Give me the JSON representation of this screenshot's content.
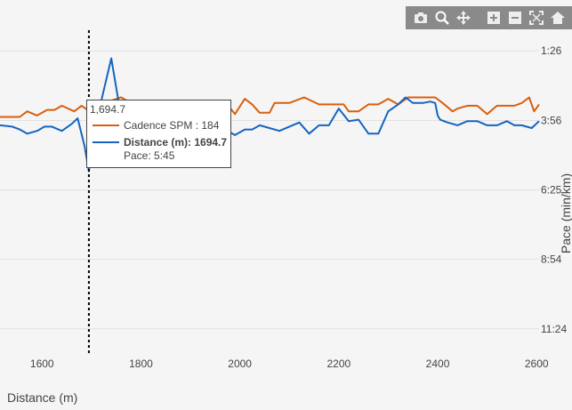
{
  "chart_data": {
    "type": "line",
    "xlabel": "Distance (m)",
    "ylabel": "Pace (min/km)",
    "xlim": [
      1515,
      2605
    ],
    "x_ticks": [
      1600,
      1800,
      2000,
      2200,
      2400,
      2600
    ],
    "x_tick_labels": [
      "1600",
      "1800",
      "2000",
      "2200",
      "2400",
      "2600"
    ],
    "y_ticks": [
      "1:26",
      "3:56",
      "6:25",
      "8:54",
      "11:24"
    ],
    "y_tick_values": [
      1.43,
      3.93,
      6.42,
      8.9,
      11.4
    ],
    "ylim": [
      0.5,
      12.3
    ],
    "y_axis_side": "right",
    "grid": true,
    "hover_x": 1694.7,
    "series": [
      {
        "name": "Cadence SPM",
        "color": "#d95f0e",
        "x": [
          1515,
          1537,
          1545,
          1555,
          1570,
          1590,
          1610,
          1625,
          1640,
          1665,
          1680,
          1692,
          1705,
          1720,
          1742,
          1760,
          1780,
          1800,
          1830,
          1860,
          1880,
          1900,
          1920,
          1945,
          1970,
          1990,
          2010,
          2025,
          2040,
          2060,
          2070,
          2085,
          2100,
          2130,
          2160,
          2190,
          2210,
          2220,
          2240,
          2260,
          2280,
          2300,
          2320,
          2340,
          2360,
          2380,
          2395,
          2410,
          2430,
          2440,
          2460,
          2480,
          2500,
          2520,
          2540,
          2555,
          2570,
          2585,
          2595,
          2605
        ],
        "values": [
          3.8,
          3.8,
          3.8,
          3.8,
          3.6,
          3.75,
          3.55,
          3.55,
          3.4,
          3.6,
          3.4,
          3.55,
          3.5,
          3.35,
          3.2,
          3.1,
          3.3,
          3.35,
          3.4,
          3.35,
          3.35,
          3.3,
          3.3,
          3.25,
          3.25,
          3.7,
          3.15,
          3.35,
          3.65,
          3.65,
          3.3,
          3.3,
          3.3,
          3.1,
          3.35,
          3.35,
          3.35,
          3.6,
          3.6,
          3.35,
          3.35,
          3.15,
          3.35,
          3.1,
          3.1,
          3.1,
          3.1,
          3.3,
          3.6,
          3.5,
          3.4,
          3.4,
          3.7,
          3.4,
          3.4,
          3.4,
          3.3,
          3.1,
          3.6,
          3.35
        ]
      },
      {
        "name": "Distance (m)",
        "color": "#1565c0",
        "x": [
          1515,
          1540,
          1555,
          1570,
          1590,
          1605,
          1620,
          1640,
          1660,
          1672,
          1686,
          1694.7,
          1705,
          1720,
          1740,
          1760,
          1780,
          1800,
          1830,
          1860,
          1880,
          1900,
          1920,
          1945,
          1970,
          1990,
          2010,
          2025,
          2040,
          2060,
          2080,
          2100,
          2120,
          2140,
          2160,
          2180,
          2200,
          2220,
          2240,
          2260,
          2280,
          2300,
          2320,
          2335,
          2350,
          2370,
          2385,
          2395,
          2400,
          2405,
          2420,
          2440,
          2460,
          2480,
          2500,
          2520,
          2540,
          2555,
          2570,
          2590,
          2605
        ],
        "values": [
          4.1,
          4.15,
          4.25,
          4.4,
          4.3,
          4.15,
          4.15,
          4.3,
          4.05,
          3.85,
          4.85,
          5.75,
          4.3,
          3.2,
          1.7,
          3.8,
          4.2,
          4.3,
          4.4,
          4.3,
          4.45,
          4.2,
          4.4,
          4.15,
          4.25,
          4.45,
          4.25,
          4.25,
          4.1,
          4.2,
          4.3,
          4.15,
          4.0,
          4.4,
          4.1,
          4.1,
          3.5,
          3.95,
          3.9,
          4.4,
          4.4,
          3.6,
          3.35,
          3.1,
          3.3,
          3.3,
          3.25,
          3.3,
          3.75,
          3.9,
          4.0,
          4.1,
          3.95,
          3.95,
          4.1,
          4.1,
          3.95,
          4.1,
          4.1,
          4.2,
          3.95
        ]
      }
    ],
    "tooltip": {
      "title": "1,694.7",
      "rows": [
        {
          "series": "Cadence SPM",
          "text": "Cadence SPM : 184",
          "color": "#d95f0e"
        },
        {
          "series": "Distance (m)",
          "text": "Distance (m): 1694.7",
          "subtext": "Pace: 5:45",
          "color": "#1565c0"
        }
      ]
    }
  },
  "toolbar": {
    "buttons": [
      {
        "name": "camera-icon"
      },
      {
        "name": "zoom-icon"
      },
      {
        "name": "pan-icon"
      },
      {
        "name": "zoom-in-icon"
      },
      {
        "name": "zoom-out-icon"
      },
      {
        "name": "autoscale-icon"
      },
      {
        "name": "home-icon"
      }
    ]
  }
}
